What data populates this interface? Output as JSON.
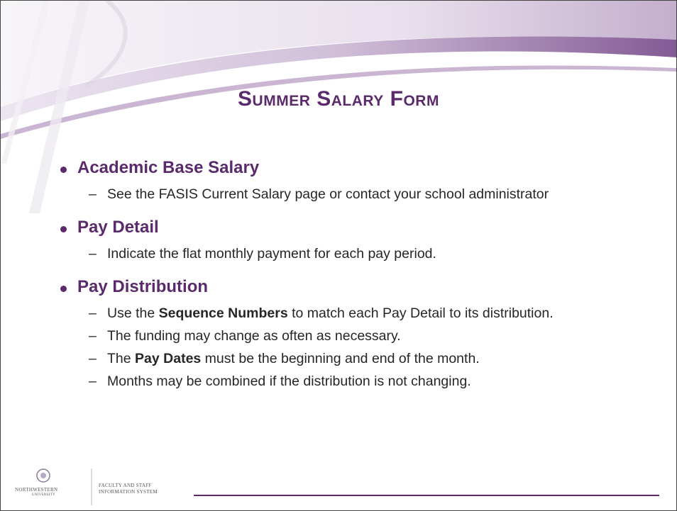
{
  "slide": {
    "title": "Summer Salary Form",
    "bullets": [
      {
        "heading": "Academic Base Salary",
        "items": [
          [
            {
              "text": "See the FASIS Current Salary page or contact your school administrator"
            }
          ]
        ]
      },
      {
        "heading": "Pay Detail",
        "items": [
          [
            {
              "text": "Indicate the flat monthly payment for each pay period."
            }
          ]
        ]
      },
      {
        "heading": "Pay Distribution",
        "items": [
          [
            {
              "text": "Use the "
            },
            {
              "text": "Sequence Numbers",
              "bold": true
            },
            {
              "text": " to match each Pay Detail to its distribution."
            }
          ],
          [
            {
              "text": "The funding may change as often as necessary."
            }
          ],
          [
            {
              "text": "The "
            },
            {
              "text": "Pay Dates",
              "bold": true
            },
            {
              "text": " must be the beginning and end of the month."
            }
          ],
          [
            {
              "text": "Months may be combined if the distribution is not changing."
            }
          ]
        ]
      }
    ],
    "footer": {
      "university": "NORTHWESTERN",
      "university_sub": "UNIVERSITY",
      "system_line1": "FACULTY AND STAFF",
      "system_line2": "INFORMATION SYSTEM"
    }
  }
}
